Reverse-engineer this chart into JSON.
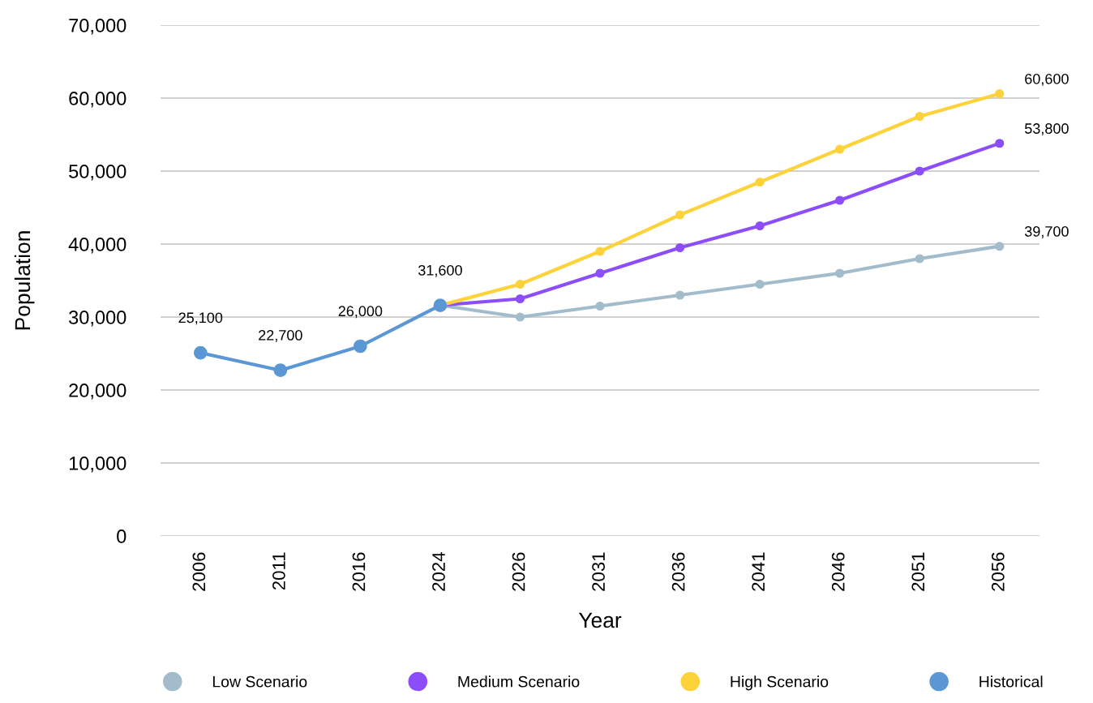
{
  "chart_data": {
    "type": "line",
    "xlabel": "Year",
    "ylabel": "Population",
    "categories": [
      "2006",
      "2011",
      "2016",
      "2024",
      "2026",
      "2031",
      "2036",
      "2041",
      "2046",
      "2051",
      "2056"
    ],
    "series": [
      {
        "name": "Low Scenario",
        "color": "#a3bccc",
        "values": [
          null,
          null,
          null,
          31600,
          30000,
          31500,
          33000,
          34500,
          36000,
          38000,
          39700
        ],
        "value_labels": [
          null,
          null,
          null,
          null,
          null,
          null,
          null,
          null,
          null,
          null,
          "39,700"
        ]
      },
      {
        "name": "Medium Scenario",
        "color": "#8c4dfb",
        "values": [
          null,
          null,
          null,
          31600,
          32500,
          36000,
          39500,
          42500,
          46000,
          50000,
          53800
        ],
        "value_labels": [
          null,
          null,
          null,
          null,
          null,
          null,
          null,
          null,
          null,
          null,
          "53,800"
        ]
      },
      {
        "name": "High Scenario",
        "color": "#fdd23a",
        "values": [
          null,
          null,
          null,
          31600,
          34500,
          39000,
          44000,
          48500,
          53000,
          57500,
          60600
        ],
        "value_labels": [
          null,
          null,
          null,
          null,
          null,
          null,
          null,
          null,
          null,
          null,
          "60,600"
        ]
      },
      {
        "name": "Historical",
        "color": "#5b97d5",
        "values": [
          25100,
          22700,
          26000,
          31600,
          null,
          null,
          null,
          null,
          null,
          null,
          null
        ],
        "value_labels": [
          "25,100",
          "22,700",
          "26,000",
          "31,600",
          null,
          null,
          null,
          null,
          null,
          null,
          null
        ]
      }
    ],
    "ylim": [
      0,
      70000
    ],
    "yticks": [
      {
        "value": 0,
        "label": "0"
      },
      {
        "value": 10000,
        "label": "10,000"
      },
      {
        "value": 20000,
        "label": "20,000"
      },
      {
        "value": 30000,
        "label": "30,000"
      },
      {
        "value": 40000,
        "label": "40,000"
      },
      {
        "value": 50000,
        "label": "50,000"
      },
      {
        "value": 60000,
        "label": "60,000"
      },
      {
        "value": 70000,
        "label": "70,000"
      }
    ],
    "grid": "y",
    "legend": "bottom",
    "marker": "circle",
    "line_style": "solid"
  }
}
